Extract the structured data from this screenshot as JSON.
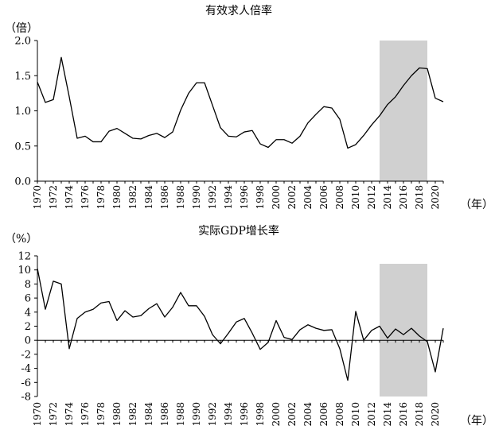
{
  "chart_data": [
    {
      "type": "line",
      "title": "有效求人倍率",
      "ylabel": "（倍）",
      "xlabel": "（年）",
      "ylim": [
        0,
        2
      ],
      "yticks": [
        "0.0",
        "0.5",
        "1.0",
        "1.5",
        "2.0"
      ],
      "xlim": [
        1970,
        2021
      ],
      "xticks": [
        "1970",
        "1972",
        "1974",
        "1976",
        "1978",
        "1980",
        "1982",
        "1984",
        "1986",
        "1988",
        "1990",
        "1992",
        "1994",
        "1996",
        "1998",
        "2000",
        "2002",
        "2004",
        "2006",
        "2008",
        "2010",
        "2012",
        "2014",
        "2016",
        "2018",
        "2020"
      ],
      "shaded_range": [
        2013,
        2019
      ],
      "shade_color": "#d0d0d0",
      "x": [
        1970,
        1971,
        1972,
        1973,
        1974,
        1975,
        1976,
        1977,
        1978,
        1979,
        1980,
        1981,
        1982,
        1983,
        1984,
        1985,
        1986,
        1987,
        1988,
        1989,
        1990,
        1991,
        1992,
        1993,
        1994,
        1995,
        1996,
        1997,
        1998,
        1999,
        2000,
        2001,
        2002,
        2003,
        2004,
        2005,
        2006,
        2007,
        2008,
        2009,
        2010,
        2011,
        2012,
        2013,
        2014,
        2015,
        2016,
        2017,
        2018,
        2019,
        2020,
        2021
      ],
      "values": [
        1.41,
        1.12,
        1.16,
        1.76,
        1.2,
        0.61,
        0.64,
        0.56,
        0.56,
        0.71,
        0.75,
        0.68,
        0.61,
        0.6,
        0.65,
        0.68,
        0.62,
        0.7,
        1.01,
        1.25,
        1.4,
        1.4,
        1.08,
        0.76,
        0.64,
        0.63,
        0.7,
        0.72,
        0.53,
        0.48,
        0.59,
        0.59,
        0.54,
        0.64,
        0.83,
        0.95,
        1.06,
        1.04,
        0.88,
        0.47,
        0.52,
        0.65,
        0.8,
        0.93,
        1.09,
        1.2,
        1.36,
        1.5,
        1.61,
        1.6,
        1.18,
        1.13
      ]
    },
    {
      "type": "line",
      "title": "实际GDP增长率",
      "ylabel": "（%）",
      "xlabel": "（年）",
      "ylim": [
        -8,
        12
      ],
      "yticks": [
        "-8",
        "-6",
        "-4",
        "-2",
        "0",
        "2",
        "4",
        "6",
        "8",
        "10",
        "12"
      ],
      "xlim": [
        1970,
        2021
      ],
      "xticks": [
        "1970",
        "1972",
        "1974",
        "1976",
        "1978",
        "1980",
        "1982",
        "1984",
        "1986",
        "1988",
        "1990",
        "1992",
        "1994",
        "1996",
        "1998",
        "2000",
        "2002",
        "2004",
        "2006",
        "2008",
        "2010",
        "2012",
        "2014",
        "2016",
        "2018",
        "2020"
      ],
      "shaded_range": [
        2013,
        2019
      ],
      "shade_color": "#d0d0d0",
      "x": [
        1970,
        1971,
        1972,
        1973,
        1974,
        1975,
        1976,
        1977,
        1978,
        1979,
        1980,
        1981,
        1982,
        1983,
        1984,
        1985,
        1986,
        1987,
        1988,
        1989,
        1990,
        1991,
        1992,
        1993,
        1994,
        1995,
        1996,
        1997,
        1998,
        1999,
        2000,
        2001,
        2002,
        2003,
        2004,
        2005,
        2006,
        2007,
        2008,
        2009,
        2010,
        2011,
        2012,
        2013,
        2014,
        2015,
        2016,
        2017,
        2018,
        2019,
        2020,
        2021
      ],
      "values": [
        10.2,
        4.4,
        8.4,
        8.0,
        -1.2,
        3.1,
        4.0,
        4.4,
        5.3,
        5.5,
        2.8,
        4.2,
        3.3,
        3.5,
        4.5,
        5.2,
        3.3,
        4.7,
        6.8,
        4.9,
        4.9,
        3.4,
        0.8,
        -0.5,
        1.0,
        2.6,
        3.1,
        1.0,
        -1.3,
        -0.3,
        2.8,
        0.4,
        0.1,
        1.5,
        2.2,
        1.7,
        1.4,
        1.5,
        -1.2,
        -5.7,
        4.1,
        0.0,
        1.4,
        2.0,
        0.3,
        1.6,
        0.8,
        1.7,
        0.6,
        -0.2,
        -4.5,
        1.7
      ]
    }
  ]
}
